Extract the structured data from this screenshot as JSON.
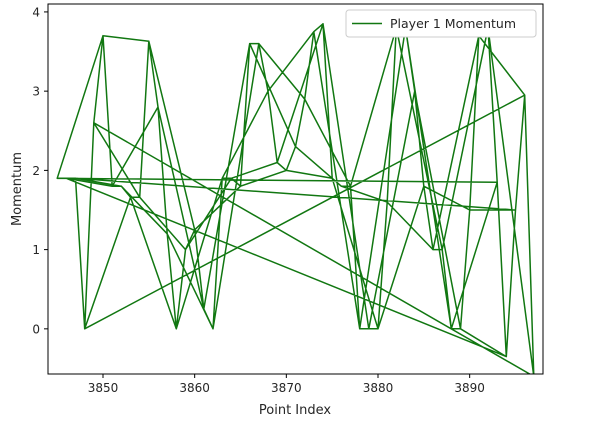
{
  "chart_data": {
    "type": "line",
    "title": "",
    "xlabel": "Point Index",
    "ylabel": "Momentum",
    "xlim": [
      3844,
      3898
    ],
    "ylim": [
      -0.57,
      4.1
    ],
    "xticks": [
      3850,
      3860,
      3870,
      3880,
      3890
    ],
    "yticks": [
      0,
      1,
      2,
      3,
      4
    ],
    "grid": false,
    "legend_position": "top-right",
    "series": [
      {
        "name": "Player 1 Momentum",
        "color": "#117711",
        "x": [
          3845,
          3846,
          3847,
          3848,
          3849,
          3850,
          3851,
          3852,
          3853,
          3854,
          3855,
          3856,
          3857,
          3858,
          3859,
          3860,
          3861,
          3862,
          3863,
          3864,
          3865,
          3866,
          3867,
          3868,
          3869,
          3870,
          3871,
          3872,
          3873,
          3874,
          3875,
          3876,
          3877,
          3878,
          3879,
          3880,
          3881,
          3882,
          3883,
          3884,
          3885,
          3886,
          3887,
          3888,
          3889,
          3890,
          3891,
          3892,
          3893,
          3894,
          3895,
          3896,
          3897
        ],
        "y": [
          1.9,
          1.9,
          1.9,
          0.0,
          2.6,
          3.7,
          1.8,
          1.8,
          1.66,
          1.66,
          3.63,
          2.8,
          1.2,
          0.0,
          1.0,
          1.25,
          0.25,
          0.0,
          1.9,
          1.9,
          1.8,
          3.6,
          3.6,
          3.0,
          2.1,
          2.0,
          2.3,
          2.9,
          3.75,
          3.85,
          1.9,
          1.8,
          1.8,
          0.0,
          0.0,
          0.0,
          1.6,
          3.8,
          3.8,
          3.0,
          1.8,
          1.0,
          1.0,
          0.0,
          0.0,
          1.5,
          3.7,
          3.8,
          1.85,
          -0.35,
          1.5,
          2.95,
          -0.6
        ]
      }
    ]
  }
}
